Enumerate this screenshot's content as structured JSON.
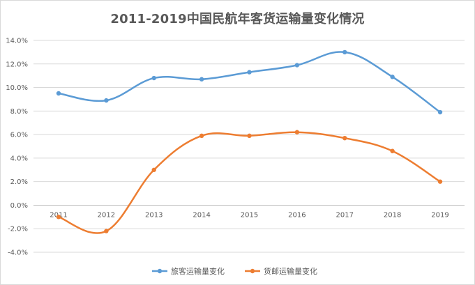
{
  "chart_data": {
    "type": "line",
    "title": "2011-2019中国民航年客货运输量变化情况",
    "xlabel": "",
    "ylabel": "",
    "categories": [
      "2011",
      "2012",
      "2013",
      "2014",
      "2015",
      "2016",
      "2017",
      "2018",
      "2019"
    ],
    "y_ticks": [
      "-4.0%",
      "-2.0%",
      "0.0%",
      "2.0%",
      "4.0%",
      "6.0%",
      "8.0%",
      "10.0%",
      "12.0%",
      "14.0%"
    ],
    "ylim": [
      -4,
      14
    ],
    "grid": true,
    "smooth": true,
    "legend_position": "bottom",
    "series": [
      {
        "name": "旅客运输量变化",
        "color": "#5b9bd5",
        "values": [
          9.5,
          8.9,
          10.8,
          10.7,
          11.3,
          11.9,
          13.0,
          10.9,
          7.9
        ]
      },
      {
        "name": "货邮运输量变化",
        "color": "#ed7d31",
        "values": [
          -1.0,
          -2.2,
          3.0,
          5.9,
          5.9,
          6.2,
          5.7,
          4.6,
          2.0
        ]
      }
    ]
  }
}
